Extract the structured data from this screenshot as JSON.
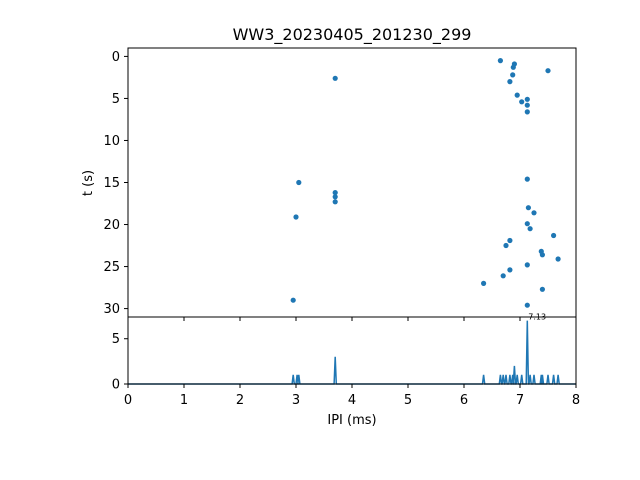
{
  "title": "WW3_20230405_201230_299",
  "accent_color": "#1f77b4",
  "chart_data": [
    {
      "type": "scatter",
      "name": "raster",
      "xlabel": "",
      "ylabel": "t (s)",
      "xlim": [
        0,
        8
      ],
      "ylim": [
        31,
        -1
      ],
      "y_inverted": true,
      "yticks": [
        0,
        5,
        10,
        15,
        20,
        25,
        30
      ],
      "xticks_labels_shown": false,
      "grid": false,
      "points": [
        {
          "x": 3.7,
          "y": 2.6
        },
        {
          "x": 3.05,
          "y": 15.0
        },
        {
          "x": 3.0,
          "y": 19.1
        },
        {
          "x": 3.7,
          "y": 16.2
        },
        {
          "x": 3.7,
          "y": 16.7
        },
        {
          "x": 3.7,
          "y": 17.3
        },
        {
          "x": 2.95,
          "y": 29.0
        },
        {
          "x": 6.65,
          "y": 0.5
        },
        {
          "x": 6.9,
          "y": 0.9
        },
        {
          "x": 6.88,
          "y": 1.3
        },
        {
          "x": 6.87,
          "y": 2.2
        },
        {
          "x": 6.82,
          "y": 3.0
        },
        {
          "x": 7.5,
          "y": 1.7
        },
        {
          "x": 6.95,
          "y": 4.6
        },
        {
          "x": 7.03,
          "y": 5.4
        },
        {
          "x": 7.13,
          "y": 5.1
        },
        {
          "x": 7.13,
          "y": 5.8
        },
        {
          "x": 7.13,
          "y": 6.6
        },
        {
          "x": 7.13,
          "y": 14.6
        },
        {
          "x": 7.15,
          "y": 18.0
        },
        {
          "x": 7.25,
          "y": 18.6
        },
        {
          "x": 7.13,
          "y": 19.9
        },
        {
          "x": 7.18,
          "y": 20.5
        },
        {
          "x": 7.6,
          "y": 21.3
        },
        {
          "x": 6.82,
          "y": 21.9
        },
        {
          "x": 6.75,
          "y": 22.5
        },
        {
          "x": 7.38,
          "y": 23.2
        },
        {
          "x": 7.4,
          "y": 23.6
        },
        {
          "x": 7.68,
          "y": 24.1
        },
        {
          "x": 7.13,
          "y": 24.8
        },
        {
          "x": 6.82,
          "y": 25.4
        },
        {
          "x": 6.7,
          "y": 26.1
        },
        {
          "x": 6.35,
          "y": 27.0
        },
        {
          "x": 7.4,
          "y": 27.7
        },
        {
          "x": 7.13,
          "y": 29.6
        }
      ]
    },
    {
      "type": "line",
      "name": "histogram",
      "xlabel": "IPI (ms)",
      "ylabel": "",
      "xlim": [
        0,
        8
      ],
      "ylim": [
        0,
        7.4
      ],
      "xticks": [
        0,
        1,
        2,
        3,
        4,
        5,
        6,
        7,
        8
      ],
      "yticks": [
        0,
        5
      ],
      "grid": false,
      "peaks": [
        {
          "x": 2.95,
          "y": 1.0
        },
        {
          "x": 3.02,
          "y": 1.0
        },
        {
          "x": 3.05,
          "y": 1.0
        },
        {
          "x": 3.7,
          "y": 3.0
        },
        {
          "x": 6.35,
          "y": 1.0
        },
        {
          "x": 6.65,
          "y": 1.0
        },
        {
          "x": 6.7,
          "y": 1.0
        },
        {
          "x": 6.75,
          "y": 1.0
        },
        {
          "x": 6.82,
          "y": 1.0
        },
        {
          "x": 6.87,
          "y": 1.0
        },
        {
          "x": 6.9,
          "y": 2.0
        },
        {
          "x": 6.95,
          "y": 1.0
        },
        {
          "x": 7.03,
          "y": 1.0
        },
        {
          "x": 7.13,
          "y": 7.0
        },
        {
          "x": 7.18,
          "y": 1.0
        },
        {
          "x": 7.25,
          "y": 1.0
        },
        {
          "x": 7.38,
          "y": 1.0
        },
        {
          "x": 7.4,
          "y": 1.0
        },
        {
          "x": 7.5,
          "y": 1.0
        },
        {
          "x": 7.6,
          "y": 1.0
        },
        {
          "x": 7.68,
          "y": 1.0
        }
      ],
      "annotation": {
        "text": "7.13",
        "x": 7.13,
        "y": 7.0
      }
    }
  ]
}
